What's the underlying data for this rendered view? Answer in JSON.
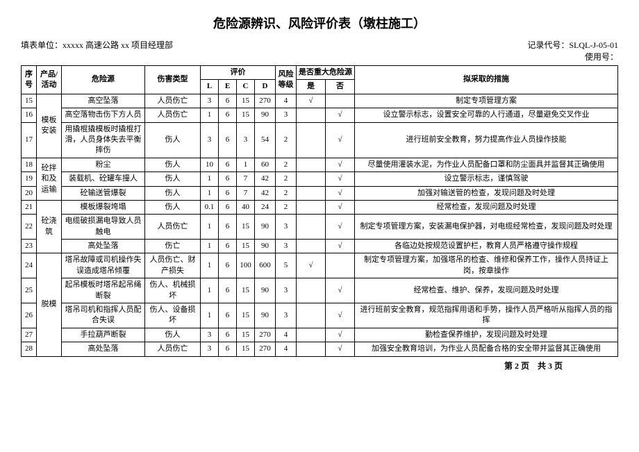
{
  "title": "危险源辨识、风险评价表（墩柱施工）",
  "record_code_label": "记录代号：",
  "record_code": "SLQL-J-05-01",
  "org_label": "填表单位：",
  "org": "xxxxx 高速公路 xx 项目经理部",
  "usage_label": "使用号：",
  "headers": {
    "seq": "序号",
    "activity": "产品/活动",
    "hazard": "危险源",
    "harm": "伤害类型",
    "eval": "评价",
    "L": "L",
    "E": "E",
    "C": "C",
    "D": "D",
    "level": "风险等级",
    "major": "是否重大危险源",
    "yes": "是",
    "no": "否",
    "measure": "拟采取的措施"
  },
  "rows": [
    {
      "seq": "15",
      "activity": "",
      "hazard": "高空坠落",
      "harm": "人员伤亡",
      "L": "3",
      "E": "6",
      "C": "15",
      "D": "270",
      "level": "4",
      "yes": "√",
      "no": "",
      "measure": "制定专项管理方案"
    },
    {
      "seq": "16",
      "activity": "模板安装",
      "act_rowspan": 3,
      "hazard": "高空落物击伤下方人员",
      "harm": "人员伤亡",
      "L": "1",
      "E": "6",
      "C": "15",
      "D": "90",
      "level": "3",
      "yes": "",
      "no": "√",
      "measure": "设立警示标志，设置安全可靠的人行通道，尽量避免交叉作业"
    },
    {
      "seq": "17",
      "hazard": "用撬棍撬模板时撬棍打滑，人员身体失去平衡摔伤",
      "harm": "伤人",
      "L": "3",
      "E": "6",
      "C": "3",
      "D": "54",
      "level": "2",
      "yes": "",
      "no": "√",
      "measure": "进行班前安全教育，努力提高作业人员操作技能"
    },
    {
      "seq": "18",
      "activity": "砼拌和及运输",
      "act_rowspan": 3,
      "hazard": "粉尘",
      "harm": "伤人",
      "L": "10",
      "E": "6",
      "C": "1",
      "D": "60",
      "level": "2",
      "yes": "",
      "no": "√",
      "measure": "尽量使用灌装水泥，为作业人员配备口罩和防尘面具并监督其正确使用"
    },
    {
      "seq": "19",
      "hazard": "装载机、砼罐车撞人",
      "harm": "伤人",
      "L": "1",
      "E": "6",
      "C": "7",
      "D": "42",
      "level": "2",
      "yes": "",
      "no": "√",
      "measure": "设立警示标志，谨慎驾驶"
    },
    {
      "seq": "20",
      "hazard": "砼输送管爆裂",
      "harm": "伤人",
      "L": "1",
      "E": "6",
      "C": "7",
      "D": "42",
      "level": "2",
      "yes": "",
      "no": "√",
      "measure": "加强对输送管的检查，发现问题及时处理"
    },
    {
      "seq": "21",
      "activity": "砼浇筑",
      "act_rowspan": 3,
      "hazard": "模板爆裂垮塌",
      "harm": "伤人",
      "L": "0.1",
      "E": "6",
      "C": "40",
      "D": "24",
      "level": "2",
      "yes": "",
      "no": "√",
      "measure": "经常检查，发现问题及时处理"
    },
    {
      "seq": "22",
      "hazard": "电缆破损漏电导致人员触电",
      "harm": "人员伤亡",
      "L": "1",
      "E": "6",
      "C": "15",
      "D": "90",
      "level": "3",
      "yes": "",
      "no": "√",
      "measure": "制定专项管理方案，安装漏电保护器，对电缆经常检查，发现问题及时处理"
    },
    {
      "seq": "23",
      "hazard": "高处坠落",
      "harm": "伤亡",
      "L": "1",
      "E": "6",
      "C": "15",
      "D": "90",
      "level": "3",
      "yes": "",
      "no": "√",
      "measure": "各临边处按规范设置护栏，教育人员严格遵守操作规程"
    },
    {
      "seq": "24",
      "activity": "脱模",
      "act_rowspan": 5,
      "hazard": "塔吊故障或司机操作失误造成塔吊倾覆",
      "harm": "人员伤亡、财产损失",
      "L": "1",
      "E": "6",
      "C": "100",
      "D": "600",
      "level": "5",
      "yes": "√",
      "no": "",
      "measure": "制定专项管理方案，加强塔吊的检查、维修和保养工作，操作人员持证上岗，按章操作"
    },
    {
      "seq": "25",
      "hazard": "起吊模板时塔吊起吊绳断裂",
      "harm": "伤人、机械损坏",
      "L": "1",
      "E": "6",
      "C": "15",
      "D": "90",
      "level": "3",
      "yes": "",
      "no": "√",
      "measure": "经常检查、维护、保养，发现问题及时处理"
    },
    {
      "seq": "26",
      "hazard": "塔吊司机和指挥人员配合失误",
      "harm": "伤人、设备损坏",
      "L": "1",
      "E": "6",
      "C": "15",
      "D": "90",
      "level": "3",
      "yes": "",
      "no": "√",
      "measure": "进行班前安全教育，规范指挥用语和手势，操作人员严格听从指挥人员的指挥"
    },
    {
      "seq": "27",
      "hazard": "手拉葫芦断裂",
      "harm": "伤人",
      "L": "3",
      "E": "6",
      "C": "15",
      "D": "270",
      "level": "4",
      "yes": "",
      "no": "√",
      "measure": "勤检查保养维护，发现问题及时处理"
    },
    {
      "seq": "28",
      "hazard": "高处坠落",
      "harm": "人员伤亡",
      "L": "3",
      "E": "6",
      "C": "15",
      "D": "270",
      "level": "4",
      "yes": "",
      "no": "√",
      "measure": "加强安全教育培训，为作业人员配备合格的安全带并监督其正确使用"
    }
  ],
  "footer": "第 2 页　共 3 页"
}
